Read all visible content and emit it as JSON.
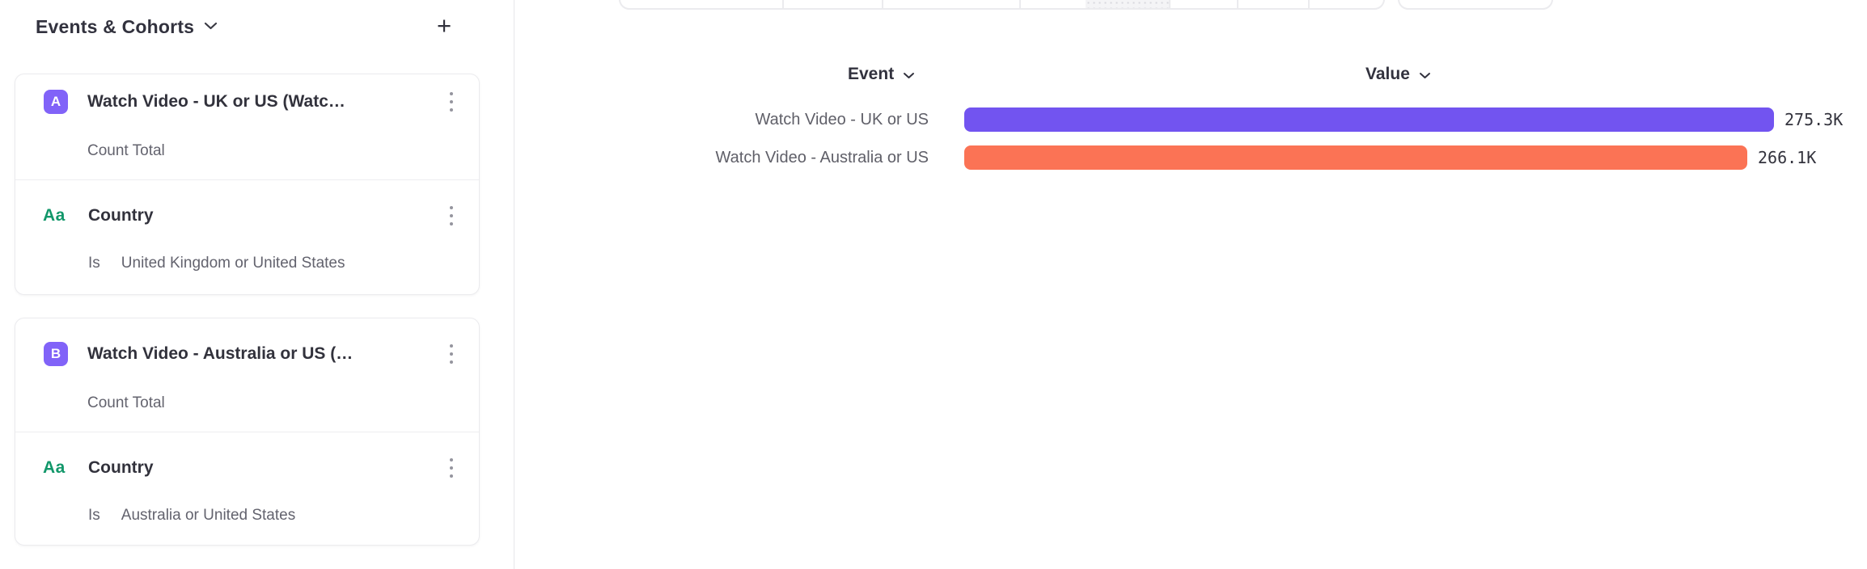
{
  "sidebar": {
    "header": {
      "title": "Events & Cohorts",
      "add_label": "+"
    },
    "groups": [
      {
        "badge": "A",
        "event_title": "Watch Video - UK or US (Watc…",
        "measurement": "Count Total",
        "property_icon": "Aa",
        "property_name": "Country",
        "operator": "Is",
        "filter_value": "United Kingdom or United States"
      },
      {
        "badge": "B",
        "event_title": "Watch Video - Australia or US (…",
        "measurement": "Count Total",
        "property_icon": "Aa",
        "property_name": "Country",
        "operator": "Is",
        "filter_value": "Australia or United States"
      }
    ]
  },
  "main": {
    "columns": {
      "event": "Event",
      "value": "Value"
    }
  },
  "colors": {
    "badge_purple": "#8163f8",
    "series_a": "#7254f0",
    "series_b": "#fb7355",
    "property_green": "#12976a"
  },
  "chart_data": {
    "type": "bar",
    "orientation": "horizontal",
    "title": "",
    "series_label_column": "Event",
    "value_column": "Value",
    "categories": [
      "Watch Video - UK or US",
      "Watch Video - Australia or US"
    ],
    "values": [
      275300,
      266100
    ],
    "value_labels": [
      "275.3K",
      "266.1K"
    ],
    "colors": [
      "#7254f0",
      "#fb7355"
    ],
    "xlim": [
      0,
      275300
    ],
    "grid": false,
    "legend": false
  }
}
